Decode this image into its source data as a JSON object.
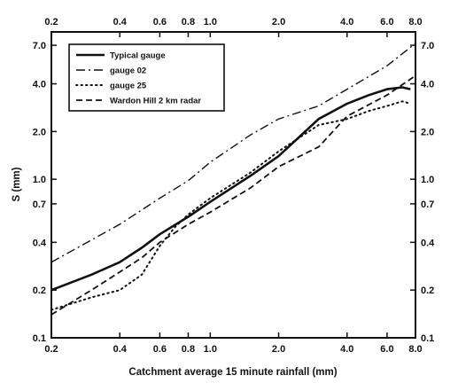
{
  "chart_data": {
    "type": "line",
    "xlabel": "Catchment average 15 minute rainfall (mm)",
    "ylabel": "S (mm)",
    "xscale": "log",
    "yscale": "log",
    "xlim": [
      0.2,
      8.0
    ],
    "ylim": [
      0.1,
      8.5
    ],
    "x_ticks": [
      0.2,
      0.4,
      0.6,
      0.8,
      1.0,
      2.0,
      4.0,
      6.0,
      8.0
    ],
    "x_tick_labels": [
      "0.2",
      "0.4",
      "0.6",
      "0.8",
      "1.0",
      "2.0",
      "4.0",
      "6.0",
      "8.0"
    ],
    "y_ticks": [
      0.1,
      0.2,
      0.4,
      0.7,
      1.0,
      2.0,
      4.0,
      7.0
    ],
    "y_tick_labels": [
      "0.1",
      "0.2",
      "0.4",
      "0.7",
      "1.0",
      "2.0",
      "4.0",
      "7.0"
    ],
    "legend_position": "top-left",
    "grid": false,
    "series": [
      {
        "name": "Typical gauge",
        "style": "solid",
        "x": [
          0.2,
          0.3,
          0.4,
          0.5,
          0.6,
          0.8,
          1.0,
          1.5,
          2.0,
          3.0,
          4.0,
          5.0,
          6.0,
          7.0,
          7.6
        ],
        "y": [
          0.2,
          0.25,
          0.3,
          0.37,
          0.45,
          0.58,
          0.72,
          1.05,
          1.4,
          2.4,
          3.0,
          3.4,
          3.7,
          3.8,
          3.7
        ]
      },
      {
        "name": "gauge 02",
        "style": "dashdot",
        "x": [
          0.2,
          0.4,
          0.6,
          0.8,
          1.0,
          1.5,
          2.0,
          3.0,
          4.0,
          6.0,
          8.0
        ],
        "y": [
          0.3,
          0.52,
          0.76,
          0.98,
          1.28,
          1.9,
          2.4,
          2.9,
          3.7,
          5.2,
          7.2
        ]
      },
      {
        "name": "gauge 25",
        "style": "dotted",
        "x": [
          0.2,
          0.3,
          0.4,
          0.5,
          0.6,
          0.7,
          0.8,
          1.0,
          1.5,
          2.0,
          3.0,
          4.0,
          5.0,
          6.0,
          7.0,
          7.6
        ],
        "y": [
          0.15,
          0.18,
          0.2,
          0.25,
          0.38,
          0.5,
          0.6,
          0.76,
          1.1,
          1.5,
          2.2,
          2.4,
          2.7,
          2.9,
          3.1,
          3.0
        ]
      },
      {
        "name": "Wardon Hill 2 km radar",
        "style": "dashed",
        "x": [
          0.2,
          0.3,
          0.4,
          0.5,
          0.6,
          0.8,
          1.0,
          1.5,
          2.0,
          3.0,
          4.0,
          6.0,
          8.0
        ],
        "y": [
          0.14,
          0.2,
          0.26,
          0.32,
          0.4,
          0.52,
          0.62,
          0.88,
          1.2,
          1.6,
          2.5,
          3.4,
          4.5
        ]
      }
    ]
  }
}
